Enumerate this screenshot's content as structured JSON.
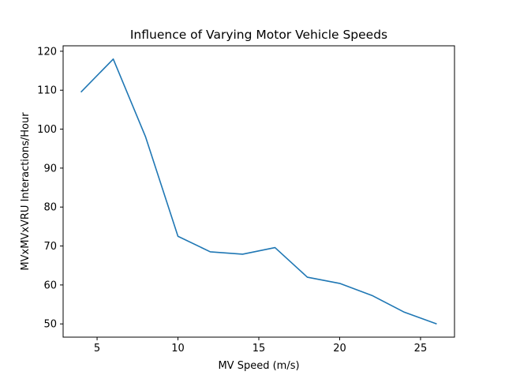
{
  "chart_data": {
    "type": "line",
    "title": "Influence of Varying Motor Vehicle Speeds",
    "xlabel": "MV Speed (m/s)",
    "ylabel": "MVxMVxVRU Interactions/Hour",
    "xlim": [
      2.9,
      27.1
    ],
    "ylim": [
      46.6,
      121.4
    ],
    "xticks": [
      5,
      10,
      15,
      20,
      25
    ],
    "yticks": [
      50,
      60,
      70,
      80,
      90,
      100,
      110,
      120
    ],
    "grid": false,
    "series": [
      {
        "color": "#1f77b4",
        "x": [
          4,
          6,
          8,
          10,
          12,
          14,
          16,
          18,
          20,
          22,
          24,
          26
        ],
        "y": [
          109.5,
          118.0,
          98.0,
          72.5,
          68.5,
          67.9,
          69.6,
          62.0,
          60.4,
          57.3,
          53.0,
          50.0
        ]
      }
    ]
  }
}
